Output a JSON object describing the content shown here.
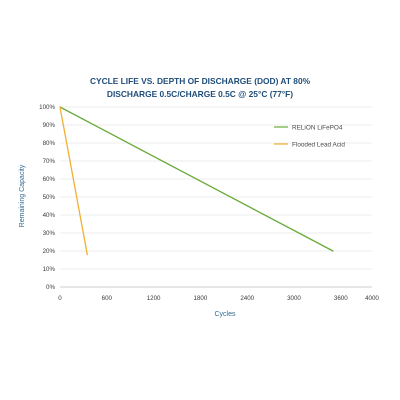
{
  "chart_data": {
    "type": "line",
    "title_lines": [
      "CYCLE LIFE VS. DEPTH OF DISCHARGE (DOD) AT 80%",
      "DISCHARGE 0.5C/CHARGE 0.5C @ 25°C (77°F)"
    ],
    "xlabel": "Cycles",
    "ylabel": "Remaining Capacity",
    "xlim": [
      0,
      4000
    ],
    "ylim": [
      0,
      100
    ],
    "x_ticks": [
      "0",
      "600",
      "1200",
      "1800",
      "2400",
      "3000",
      "3600",
      "4000"
    ],
    "x_tick_values": [
      0,
      600,
      1200,
      1800,
      2400,
      3000,
      3600,
      4000
    ],
    "y_ticks": [
      "0%",
      "10%",
      "20%",
      "30%",
      "40%",
      "50%",
      "60%",
      "70%",
      "80%",
      "90%",
      "100%"
    ],
    "y_tick_values": [
      0,
      10,
      20,
      30,
      40,
      50,
      60,
      70,
      80,
      90,
      100
    ],
    "grid": "horizontal",
    "legend_position": "right",
    "series": [
      {
        "name": "RELiON LiFePO4",
        "color": "#6aaa3a",
        "x": [
          0,
          3500
        ],
        "y": [
          100,
          20
        ]
      },
      {
        "name": "Flooded Lead Acid",
        "color": "#f0b030",
        "x": [
          0,
          350
        ],
        "y": [
          100,
          18
        ]
      }
    ]
  }
}
